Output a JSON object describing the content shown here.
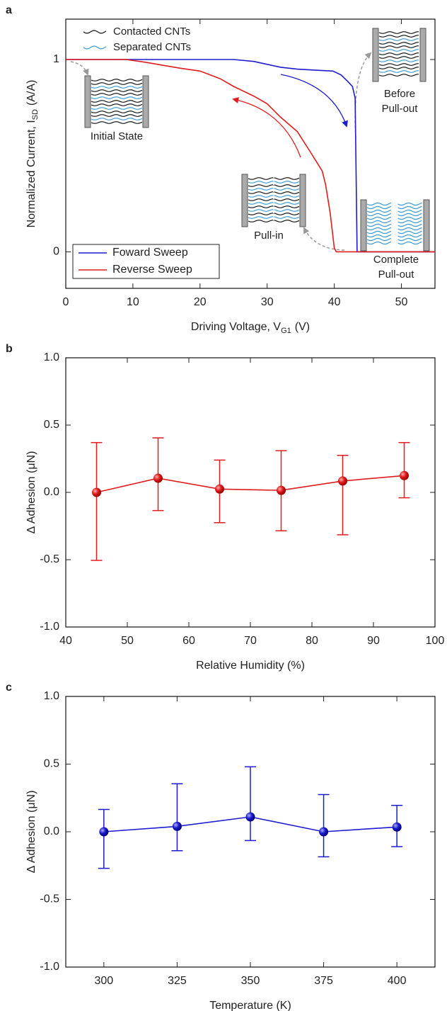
{
  "chart_data": [
    {
      "type": "line",
      "panel": "a",
      "x_label": [
        "Driving Voltage, V",
        "G1",
        "(V)"
      ],
      "y_label": [
        "Normalized Current, I",
        "SD",
        "(A/A)"
      ],
      "xlim": [
        0,
        55
      ],
      "xticks": [
        0,
        10,
        20,
        30,
        40,
        50
      ],
      "ylim": [
        -0.19,
        1.21
      ],
      "yticks": [
        0,
        1
      ],
      "legend": "lower left",
      "series": [
        {
          "name": "Foward Sweep",
          "color": "#1c1cd0",
          "x": [
            0,
            10,
            20,
            25,
            28,
            30,
            32,
            34.5,
            37,
            39.8,
            41,
            41.9,
            42.7,
            43.1,
            43.4,
            44,
            50,
            55
          ],
          "values": [
            1,
            1,
            1,
            1,
            0.99,
            0.975,
            0.96,
            0.95,
            0.945,
            0.94,
            0.92,
            0.89,
            0.86,
            0.8,
            0,
            0,
            0,
            0
          ]
        },
        {
          "name": "Reverse Sweep",
          "color": "#e01c1c",
          "x": [
            0,
            9,
            12,
            14.4,
            17,
            20,
            23,
            25,
            28,
            30,
            32,
            34.5,
            36.6,
            38.2,
            38.7,
            39.4,
            40,
            40.3,
            45,
            50,
            55
          ],
          "values": [
            1,
            1,
            0.985,
            0.97,
            0.955,
            0.94,
            0.9,
            0.86,
            0.81,
            0.77,
            0.7,
            0.625,
            0.51,
            0.42,
            0.35,
            0.2,
            0.02,
            0,
            0,
            0,
            0
          ]
        }
      ],
      "annotations": [
        "Contacted CNTs",
        "Separated CNTs",
        "Initial State",
        "Before",
        "Pull-out",
        "Pull-in",
        "Complete",
        "Pull-out"
      ]
    },
    {
      "type": "errorbar",
      "panel": "b",
      "x_label": [
        "Relative Humidity (%)"
      ],
      "y_label": [
        "Δ Adhesion (μN)"
      ],
      "xlim": [
        40,
        100
      ],
      "xticks": [
        40,
        50,
        60,
        70,
        80,
        90,
        100
      ],
      "ylim": [
        -1,
        1
      ],
      "yticks": [
        {
          "value": -1,
          "label": "-1.0"
        },
        -0.5,
        {
          "value": 0,
          "label": "0.0"
        },
        0.5,
        {
          "value": 1,
          "label": "1.0"
        }
      ],
      "series": [
        {
          "color": "#e01c1c",
          "x": [
            45,
            55,
            65,
            75,
            85,
            95
          ],
          "values": [
            0,
            0.105,
            0.025,
            0.015,
            0.085,
            0.125
          ],
          "upper": [
            0.37,
            0.405,
            0.24,
            0.31,
            0.275,
            0.37
          ],
          "lower": [
            -0.505,
            -0.135,
            -0.225,
            -0.285,
            -0.315,
            -0.04
          ]
        }
      ]
    },
    {
      "type": "errorbar",
      "panel": "c",
      "x_label": [
        "Temperature (K)"
      ],
      "y_label": [
        "Δ Adhesion (μN)"
      ],
      "xlim": [
        287,
        413
      ],
      "xticks": [
        300,
        325,
        350,
        375,
        400
      ],
      "ylim": [
        -1,
        1
      ],
      "yticks": [
        {
          "value": -1,
          "label": "-1.0"
        },
        -0.5,
        {
          "value": 0,
          "label": "0.0"
        },
        0.5,
        {
          "value": 1,
          "label": "1.0"
        }
      ],
      "series": [
        {
          "color": "#1c1cd0",
          "x": [
            300,
            325,
            350,
            375,
            400
          ],
          "values": [
            0,
            0.04,
            0.11,
            0,
            0.035
          ],
          "upper": [
            0.165,
            0.355,
            0.48,
            0.275,
            0.195
          ],
          "lower": [
            -0.27,
            -0.14,
            -0.065,
            -0.185,
            -0.11
          ]
        }
      ]
    }
  ]
}
